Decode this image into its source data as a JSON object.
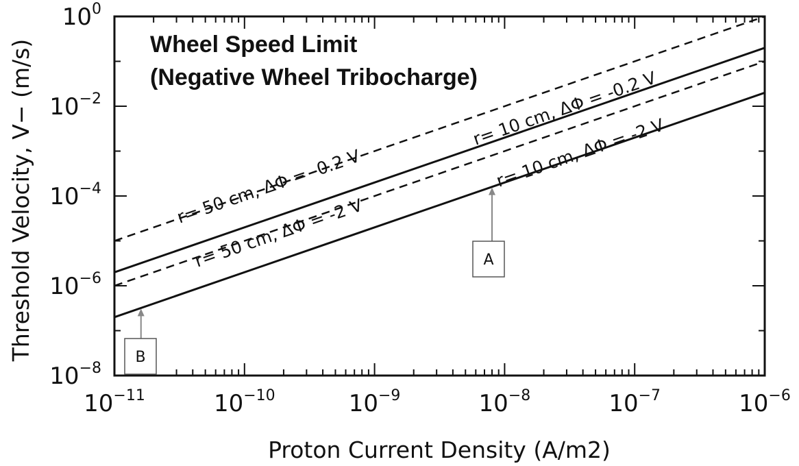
{
  "chart_data": {
    "type": "line",
    "title": "Wheel Speed Limit",
    "subtitle": "(Negative Wheel Tribocharge)",
    "xlabel": "Proton Current Density (A/m2)",
    "ylabel": "Threshold Velocity, V−  (m/s)",
    "x_scale": "log",
    "y_scale": "log",
    "xlim": [
      1e-11,
      1e-06
    ],
    "ylim": [
      1e-08,
      1
    ],
    "x_tick_labels": [
      {
        "base": "10",
        "exp": "−11",
        "value": 1e-11
      },
      {
        "base": "10",
        "exp": "−10",
        "value": 1e-10
      },
      {
        "base": "10",
        "exp": "−9",
        "value": 1e-09
      },
      {
        "base": "10",
        "exp": "−8",
        "value": 1e-08
      },
      {
        "base": "10",
        "exp": "−7",
        "value": 1e-07
      },
      {
        "base": "10",
        "exp": "−6",
        "value": 1e-06
      }
    ],
    "y_tick_labels": [
      {
        "base": "10",
        "exp": "−8",
        "value": 1e-08
      },
      {
        "base": "10",
        "exp": "−6",
        "value": 1e-06
      },
      {
        "base": "10",
        "exp": "−4",
        "value": 0.0001
      },
      {
        "base": "10",
        "exp": "−2",
        "value": 0.01
      },
      {
        "base": "10",
        "exp": "0",
        "value": 1
      }
    ],
    "grid": false,
    "series": [
      {
        "label": "r= 50 cm, ΔΦ = -0.2 V",
        "style": "dashed",
        "x": [
          1e-11,
          1e-06
        ],
        "y": [
          1e-05,
          1.0
        ]
      },
      {
        "label": "r= 10 cm, ΔΦ = -0.2 V",
        "style": "solid",
        "x": [
          1e-11,
          1e-06
        ],
        "y": [
          2e-06,
          0.2
        ]
      },
      {
        "label": "r= 50 cm, ΔΦ = -2 V",
        "style": "dashed",
        "x": [
          1e-11,
          1e-06
        ],
        "y": [
          1e-06,
          0.1
        ]
      },
      {
        "label": "r= 10 cm, ΔΦ = -2 V",
        "style": "solid",
        "x": [
          1e-11,
          1e-06
        ],
        "y": [
          2e-07,
          0.02
        ]
      }
    ],
    "annotations": [
      {
        "text": "A",
        "arrow_to": {
          "x": 8e-09,
          "y": 0.00016
        }
      },
      {
        "text": "B",
        "arrow_to": {
          "x": 1.6e-11,
          "y": 3.2e-07
        }
      }
    ]
  }
}
